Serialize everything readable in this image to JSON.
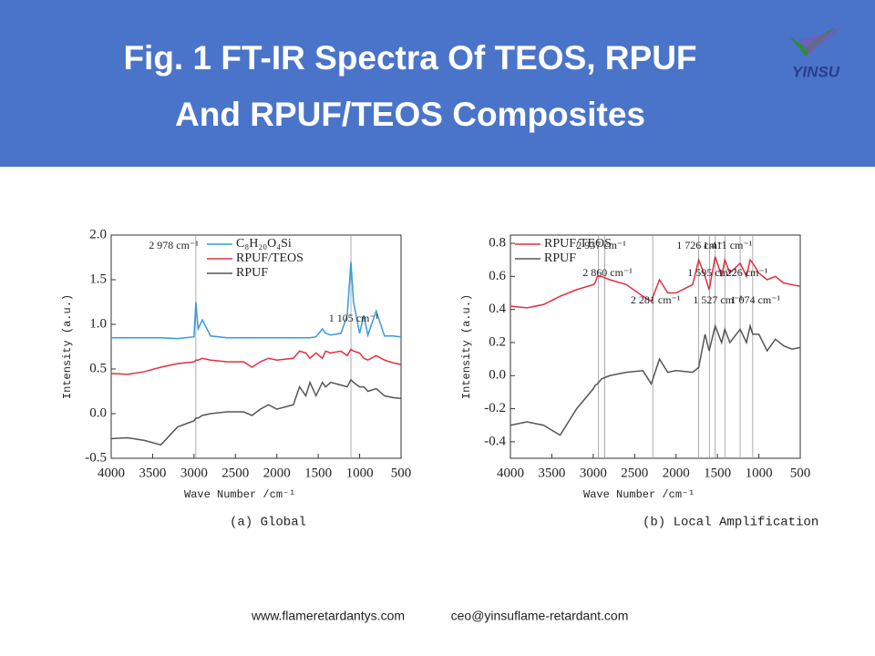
{
  "header": {
    "title_line1": "Fig. 1 FT-IR Spectra Of TEOS, RPUF",
    "title_line2": "And RPUF/TEOS Composites",
    "logo": "YINSU"
  },
  "chart_data": [
    {
      "type": "line",
      "caption": "(a) Global",
      "y_label": "Intensity (a.u.)",
      "x_label": "Wave Number /cm⁻¹",
      "xlim": [
        4000,
        500
      ],
      "xticks": [
        4000,
        3500,
        3000,
        2500,
        2000,
        1500,
        1000,
        500
      ],
      "ylim": [
        -0.5,
        2.0
      ],
      "yticks": [
        -0.5,
        {
          "value": 0,
          "label": "0.0"
        },
        0.5,
        {
          "value": 1,
          "label": "1.0"
        },
        1.5,
        {
          "value": 2,
          "label": "2.0"
        }
      ],
      "legend": "upper left",
      "x": [
        4000,
        3800,
        3600,
        3400,
        3200,
        3000,
        2978,
        2950,
        2900,
        2800,
        2600,
        2400,
        2300,
        2200,
        2100,
        2000,
        1800,
        1726,
        1650,
        1600,
        1527,
        1450,
        1411,
        1350,
        1226,
        1150,
        1105,
        1074,
        1000,
        950,
        900,
        800,
        700,
        600,
        500
      ],
      "series": [
        {
          "name": "C₈H₂₀O₄Si",
          "color": "#3a9ad9",
          "values": [
            0.85,
            0.85,
            0.85,
            0.85,
            0.84,
            0.86,
            1.25,
            0.95,
            1.05,
            0.87,
            0.85,
            0.85,
            0.85,
            0.85,
            0.85,
            0.85,
            0.85,
            0.85,
            0.85,
            0.85,
            0.86,
            0.95,
            0.9,
            0.88,
            0.9,
            1.1,
            1.7,
            1.25,
            0.9,
            1.1,
            0.88,
            1.15,
            0.87,
            0.87,
            0.86
          ]
        },
        {
          "name": "RPUF/TEOS",
          "color": "#e03040",
          "values": [
            0.45,
            0.44,
            0.47,
            0.52,
            0.56,
            0.58,
            0.6,
            0.6,
            0.62,
            0.6,
            0.58,
            0.58,
            0.52,
            0.58,
            0.62,
            0.6,
            0.62,
            0.7,
            0.68,
            0.62,
            0.68,
            0.62,
            0.7,
            0.68,
            0.7,
            0.65,
            0.72,
            0.7,
            0.68,
            0.62,
            0.6,
            0.65,
            0.6,
            0.57,
            0.55
          ]
        },
        {
          "name": "RPUF",
          "color": "#555555",
          "values": [
            -0.28,
            -0.27,
            -0.3,
            -0.35,
            -0.15,
            -0.08,
            -0.05,
            -0.05,
            -0.02,
            0.0,
            0.02,
            0.02,
            -0.02,
            0.05,
            0.1,
            0.05,
            0.1,
            0.3,
            0.2,
            0.35,
            0.2,
            0.35,
            0.3,
            0.35,
            0.32,
            0.3,
            0.38,
            0.35,
            0.3,
            0.3,
            0.25,
            0.28,
            0.2,
            0.18,
            0.17
          ]
        }
      ],
      "annotations": [
        {
          "text": "2 978 cm⁻¹",
          "x": 2978
        },
        {
          "text": "1 105 cm⁻¹",
          "x": 1105
        }
      ]
    },
    {
      "type": "line",
      "caption": "(b) Local Amplification",
      "y_label": "Intensity (a.u.)",
      "x_label": "Wave Number /cm⁻¹",
      "xlim": [
        4000,
        500
      ],
      "xticks": [
        4000,
        3500,
        3000,
        2500,
        2000,
        1500,
        1000,
        500
      ],
      "ylim": [
        -0.5,
        0.85
      ],
      "yticks": [
        -0.4,
        -0.2,
        {
          "value": 0,
          "label": "0.0"
        },
        0.2,
        0.4,
        0.6,
        0.8
      ],
      "legend": "upper left",
      "x": [
        4000,
        3800,
        3600,
        3400,
        3200,
        3000,
        2978,
        2950,
        2900,
        2800,
        2600,
        2400,
        2300,
        2200,
        2100,
        2000,
        1800,
        1726,
        1650,
        1600,
        1527,
        1450,
        1411,
        1350,
        1226,
        1150,
        1105,
        1074,
        1000,
        950,
        900,
        800,
        700,
        600,
        500
      ],
      "series": [
        {
          "name": "RPUF/TEOS",
          "color": "#e03040",
          "values": [
            0.42,
            0.41,
            0.43,
            0.48,
            0.52,
            0.55,
            0.56,
            0.6,
            0.6,
            0.58,
            0.55,
            0.48,
            0.45,
            0.58,
            0.5,
            0.5,
            0.55,
            0.7,
            0.6,
            0.52,
            0.72,
            0.6,
            0.7,
            0.62,
            0.68,
            0.6,
            0.7,
            0.68,
            0.62,
            0.6,
            0.58,
            0.6,
            0.56,
            0.55,
            0.54
          ]
        },
        {
          "name": "RPUF",
          "color": "#555555",
          "values": [
            -0.3,
            -0.28,
            -0.3,
            -0.36,
            -0.2,
            -0.08,
            -0.06,
            -0.05,
            -0.02,
            0.0,
            0.02,
            0.03,
            -0.05,
            0.1,
            0.02,
            0.03,
            0.02,
            0.05,
            0.25,
            0.15,
            0.3,
            0.2,
            0.28,
            0.2,
            0.28,
            0.2,
            0.3,
            0.25,
            0.25,
            0.2,
            0.15,
            0.22,
            0.18,
            0.16,
            0.17
          ]
        }
      ],
      "annotations": [
        {
          "text": "2 937 cm⁻¹",
          "x": 2937
        },
        {
          "text": "2 860 cm⁻¹",
          "x": 2860
        },
        {
          "text": "2 281 cm⁻¹",
          "x": 2281
        },
        {
          "text": "1 726 cm⁻¹",
          "x": 1726
        },
        {
          "text": "1 595 cm⁻¹",
          "x": 1595
        },
        {
          "text": "1 527 cm⁻¹",
          "x": 1527
        },
        {
          "text": "1 411 cm⁻¹",
          "x": 1411
        },
        {
          "text": "1 226 cm⁻¹",
          "x": 1226
        },
        {
          "text": "1 074 cm⁻¹",
          "x": 1074
        }
      ]
    }
  ],
  "footer": {
    "website": "www.flameretardantys.com",
    "email": "ceo@yinsuflame-retardant.com"
  }
}
